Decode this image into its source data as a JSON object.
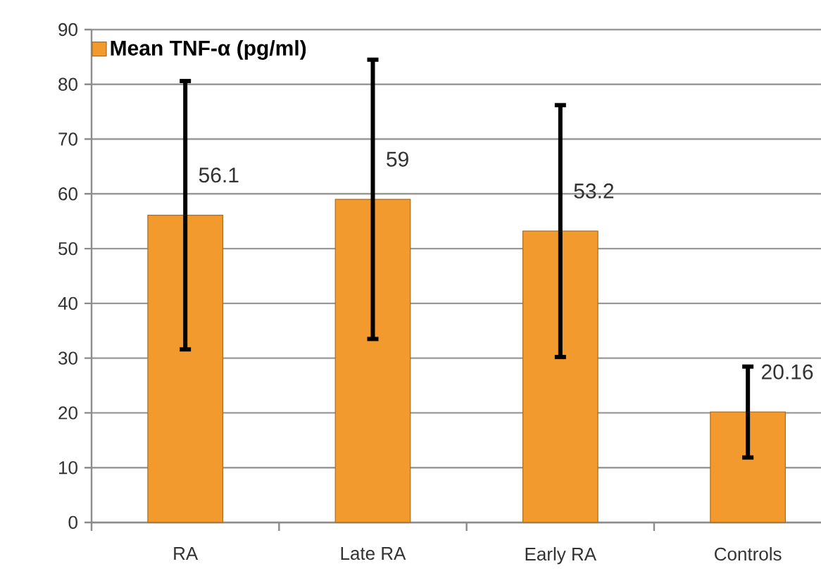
{
  "chart_data": {
    "type": "bar",
    "categories": [
      "RA",
      "Late RA",
      "Early RA",
      "Controls"
    ],
    "series": [
      {
        "name": "Mean TNF-α (pg/ml)",
        "color": "#f39a2e",
        "values": [
          56.1,
          59,
          53.2,
          20.16
        ],
        "errors": [
          24.5,
          25.5,
          23,
          8.3
        ]
      }
    ],
    "ylim": [
      0,
      90
    ],
    "yticks": [
      0,
      10,
      20,
      30,
      40,
      50,
      60,
      70,
      80,
      90
    ],
    "grid": "y",
    "legend": "top left",
    "data_labels": true
  }
}
